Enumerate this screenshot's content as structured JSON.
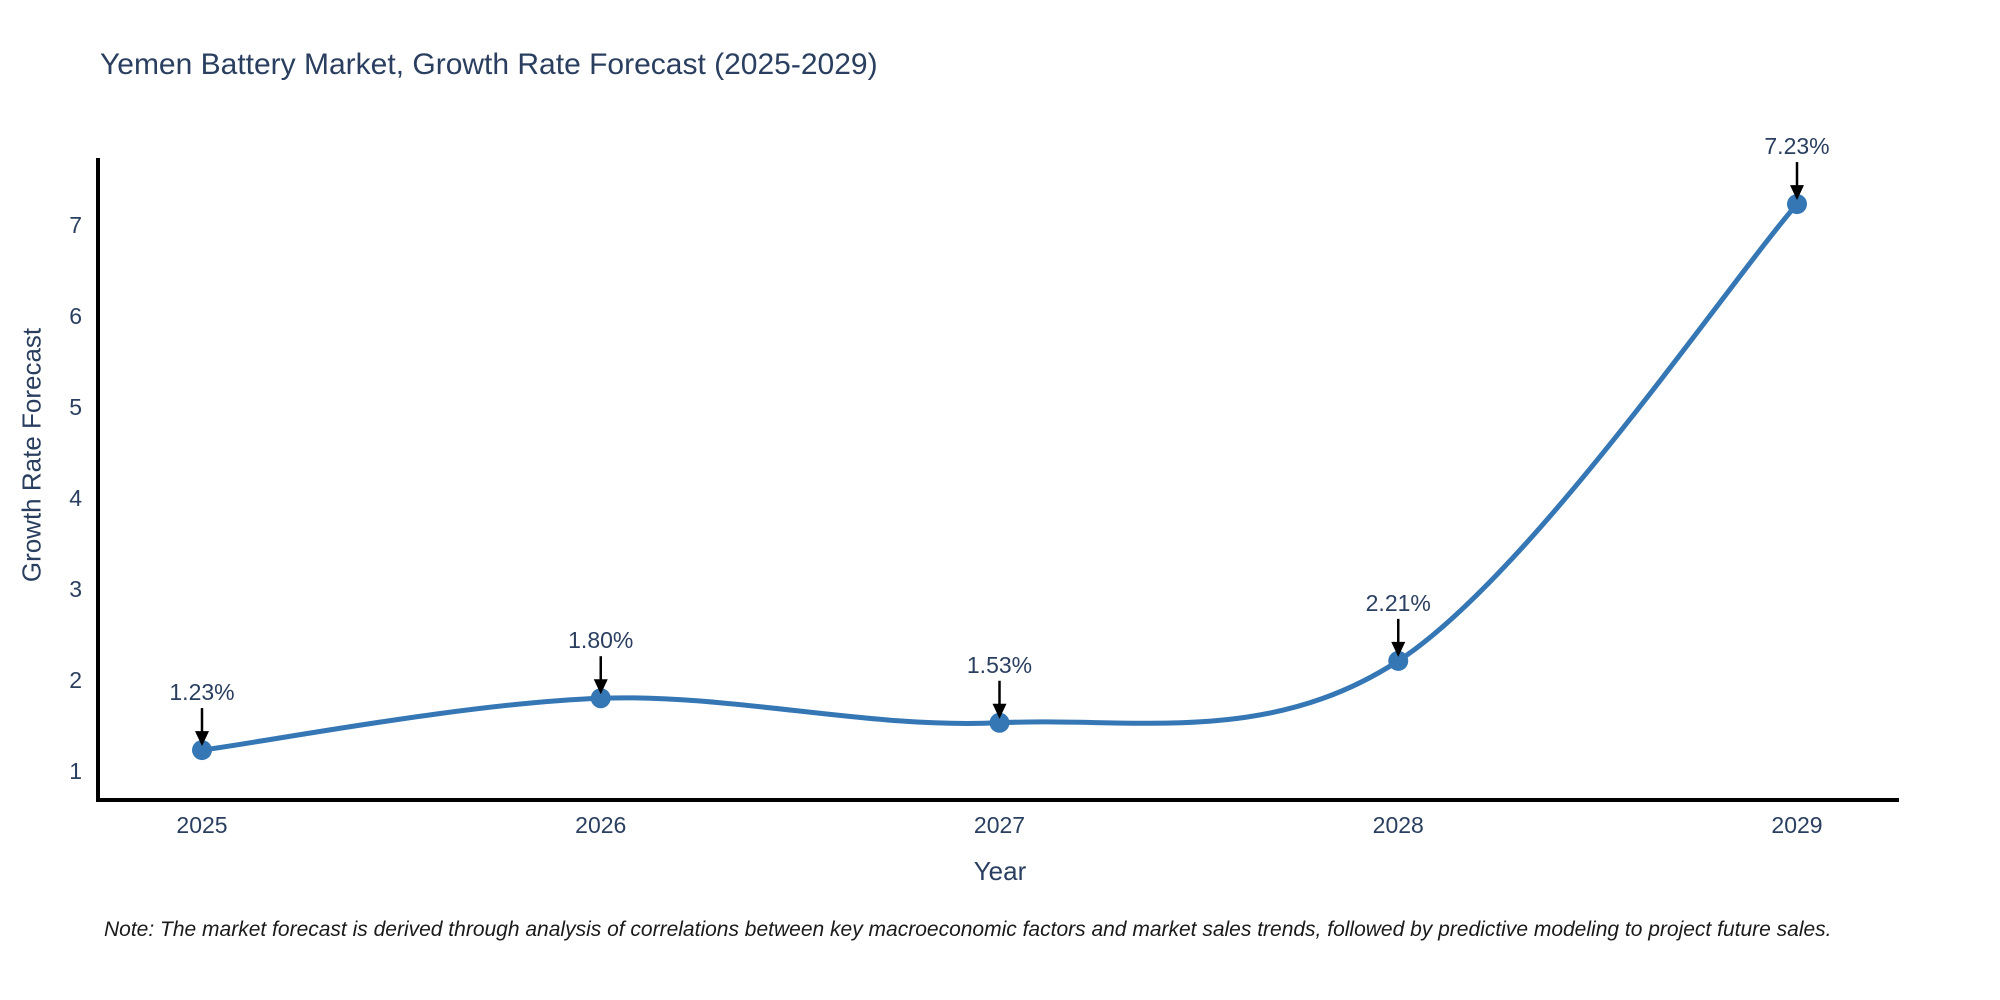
{
  "note": "Note: The market forecast is derived through analysis of correlations between key macroeconomic factors and market sales trends, followed by predictive modeling to project future sales.",
  "chart_data": {
    "type": "line",
    "title": "Yemen Battery Market, Growth Rate Forecast (2025-2029)",
    "xlabel": "Year",
    "ylabel": "Growth Rate Forecast",
    "x": [
      2025,
      2026,
      2027,
      2028,
      2029
    ],
    "series": [
      {
        "name": "Growth Rate Forecast",
        "values": [
          1.23,
          1.8,
          1.53,
          2.21,
          7.23
        ]
      }
    ],
    "data_labels": [
      "1.23%",
      "1.80%",
      "1.53%",
      "2.21%",
      "7.23%"
    ],
    "yticks": [
      1,
      2,
      3,
      4,
      5,
      6,
      7
    ],
    "ylim": [
      0.68,
      7.74
    ],
    "grid": false,
    "legend": "none",
    "line_shape": "spline",
    "line_color": "#3577b4",
    "marker_color": "#3577b4",
    "axis_color": "#000000",
    "text_color": "#2a3f5f",
    "annotation_arrow_color": "#000000"
  }
}
